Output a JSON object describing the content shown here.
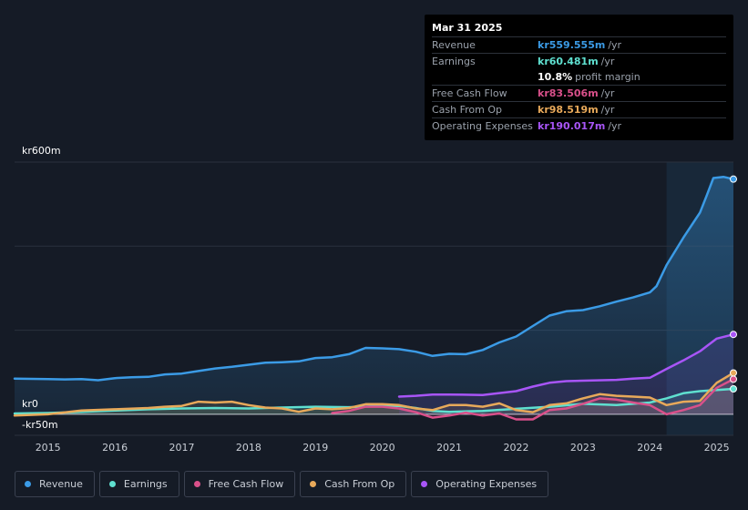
{
  "tooltip": {
    "date": "Mar 31 2025",
    "rows": [
      {
        "label": "Revenue",
        "value": "kr559.555m",
        "unit": "/yr",
        "color": "#3b9be6"
      },
      {
        "label": "Earnings",
        "value": "kr60.481m",
        "unit": "/yr",
        "color": "#5fe0d0"
      },
      {
        "label": "",
        "value": "10.8%",
        "unit": "profit margin",
        "color": "#ffffff"
      },
      {
        "label": "Free Cash Flow",
        "value": "kr83.506m",
        "unit": "/yr",
        "color": "#d9508a"
      },
      {
        "label": "Cash From Op",
        "value": "kr98.519m",
        "unit": "/yr",
        "color": "#e8a95a"
      },
      {
        "label": "Operating Expenses",
        "value": "kr190.017m",
        "unit": "/yr",
        "color": "#a855f7"
      }
    ]
  },
  "legend": [
    {
      "label": "Revenue",
      "color": "#3b9be6"
    },
    {
      "label": "Earnings",
      "color": "#5fe0d0"
    },
    {
      "label": "Free Cash Flow",
      "color": "#d9508a"
    },
    {
      "label": "Cash From Op",
      "color": "#e8a95a"
    },
    {
      "label": "Operating Expenses",
      "color": "#a855f7"
    }
  ],
  "chart_data": {
    "type": "area",
    "title": "",
    "xlabel": "",
    "ylabel": "",
    "y_tick_labels": [
      "kr600m",
      "kr0",
      "-kr50m"
    ],
    "ylim": [
      -50,
      600
    ],
    "xlim": [
      2014.5,
      2025.25
    ],
    "x_ticks": [
      2015,
      2016,
      2017,
      2018,
      2019,
      2020,
      2021,
      2022,
      2023,
      2024,
      2025
    ],
    "forecast_highlight_start": 2024.25,
    "series": [
      {
        "name": "Revenue",
        "color": "#3b9be6",
        "points": [
          [
            2014.5,
            85
          ],
          [
            2015.0,
            84
          ],
          [
            2015.25,
            83
          ],
          [
            2015.5,
            84
          ],
          [
            2015.75,
            81
          ],
          [
            2016.0,
            86
          ],
          [
            2016.25,
            88
          ],
          [
            2016.5,
            89
          ],
          [
            2016.75,
            95
          ],
          [
            2017.0,
            97
          ],
          [
            2017.25,
            103
          ],
          [
            2017.5,
            109
          ],
          [
            2017.75,
            113
          ],
          [
            2018.0,
            118
          ],
          [
            2018.25,
            123
          ],
          [
            2018.5,
            124
          ],
          [
            2018.75,
            126
          ],
          [
            2019.0,
            134
          ],
          [
            2019.25,
            136
          ],
          [
            2019.5,
            143
          ],
          [
            2019.75,
            158
          ],
          [
            2020.0,
            157
          ],
          [
            2020.25,
            155
          ],
          [
            2020.5,
            149
          ],
          [
            2020.75,
            139
          ],
          [
            2021.0,
            144
          ],
          [
            2021.25,
            143
          ],
          [
            2021.5,
            153
          ],
          [
            2021.75,
            171
          ],
          [
            2022.0,
            185
          ],
          [
            2022.25,
            210
          ],
          [
            2022.5,
            235
          ],
          [
            2022.75,
            245
          ],
          [
            2023.0,
            248
          ],
          [
            2023.25,
            257
          ],
          [
            2023.5,
            268
          ],
          [
            2023.75,
            278
          ],
          [
            2024.0,
            290
          ],
          [
            2024.1,
            305
          ],
          [
            2024.25,
            355
          ],
          [
            2024.5,
            420
          ],
          [
            2024.75,
            480
          ],
          [
            2024.85,
            520
          ],
          [
            2024.95,
            562
          ],
          [
            2025.1,
            565
          ],
          [
            2025.25,
            559.555
          ]
        ]
      },
      {
        "name": "Earnings",
        "color": "#5fe0d0",
        "points": [
          [
            2014.5,
            2
          ],
          [
            2015.0,
            3
          ],
          [
            2015.5,
            6
          ],
          [
            2016.0,
            9
          ],
          [
            2016.5,
            12
          ],
          [
            2017.0,
            14
          ],
          [
            2017.5,
            15
          ],
          [
            2018.0,
            14
          ],
          [
            2018.5,
            16
          ],
          [
            2019.0,
            18
          ],
          [
            2019.5,
            17
          ],
          [
            2020.0,
            20
          ],
          [
            2020.25,
            20
          ],
          [
            2020.5,
            15
          ],
          [
            2020.75,
            8
          ],
          [
            2021.0,
            6
          ],
          [
            2021.5,
            8
          ],
          [
            2022.0,
            13
          ],
          [
            2022.5,
            18
          ],
          [
            2023.0,
            25
          ],
          [
            2023.5,
            22
          ],
          [
            2024.0,
            28
          ],
          [
            2024.25,
            38
          ],
          [
            2024.5,
            50
          ],
          [
            2024.75,
            55
          ],
          [
            2025.0,
            58
          ],
          [
            2025.25,
            60.481
          ]
        ]
      },
      {
        "name": "Free Cash Flow",
        "color": "#d9508a",
        "points": [
          [
            2019.25,
            3
          ],
          [
            2019.5,
            8
          ],
          [
            2019.75,
            18
          ],
          [
            2020.0,
            18
          ],
          [
            2020.25,
            14
          ],
          [
            2020.5,
            5
          ],
          [
            2020.75,
            -8
          ],
          [
            2021.0,
            -3
          ],
          [
            2021.25,
            4
          ],
          [
            2021.5,
            -3
          ],
          [
            2021.75,
            2
          ],
          [
            2022.0,
            -12
          ],
          [
            2022.25,
            -12
          ],
          [
            2022.5,
            10
          ],
          [
            2022.75,
            14
          ],
          [
            2023.0,
            25
          ],
          [
            2023.25,
            38
          ],
          [
            2023.5,
            35
          ],
          [
            2023.75,
            28
          ],
          [
            2024.0,
            22
          ],
          [
            2024.25,
            0
          ],
          [
            2024.5,
            10
          ],
          [
            2024.75,
            22
          ],
          [
            2025.0,
            63
          ],
          [
            2025.25,
            83.506
          ]
        ]
      },
      {
        "name": "Cash From Op",
        "color": "#e8a95a",
        "points": [
          [
            2014.5,
            -3
          ],
          [
            2015.0,
            0
          ],
          [
            2015.5,
            9
          ],
          [
            2016.0,
            12
          ],
          [
            2016.5,
            15
          ],
          [
            2016.75,
            18
          ],
          [
            2017.0,
            20
          ],
          [
            2017.25,
            30
          ],
          [
            2017.5,
            28
          ],
          [
            2017.75,
            30
          ],
          [
            2018.0,
            22
          ],
          [
            2018.25,
            16
          ],
          [
            2018.5,
            14
          ],
          [
            2018.75,
            6
          ],
          [
            2019.0,
            14
          ],
          [
            2019.25,
            12
          ],
          [
            2019.5,
            15
          ],
          [
            2019.75,
            24
          ],
          [
            2020.0,
            24
          ],
          [
            2020.25,
            22
          ],
          [
            2020.5,
            14
          ],
          [
            2020.75,
            10
          ],
          [
            2021.0,
            22
          ],
          [
            2021.25,
            22
          ],
          [
            2021.5,
            18
          ],
          [
            2021.75,
            26
          ],
          [
            2022.0,
            10
          ],
          [
            2022.25,
            5
          ],
          [
            2022.5,
            22
          ],
          [
            2022.75,
            26
          ],
          [
            2023.0,
            38
          ],
          [
            2023.25,
            48
          ],
          [
            2023.5,
            44
          ],
          [
            2023.75,
            42
          ],
          [
            2024.0,
            40
          ],
          [
            2024.25,
            22
          ],
          [
            2024.5,
            30
          ],
          [
            2024.75,
            32
          ],
          [
            2025.0,
            75
          ],
          [
            2025.25,
            98.519
          ]
        ]
      },
      {
        "name": "Operating Expenses",
        "color": "#a855f7",
        "points": [
          [
            2020.25,
            42
          ],
          [
            2020.5,
            44
          ],
          [
            2020.75,
            47
          ],
          [
            2021.0,
            47
          ],
          [
            2021.5,
            46
          ],
          [
            2022.0,
            55
          ],
          [
            2022.25,
            66
          ],
          [
            2022.5,
            75
          ],
          [
            2022.75,
            79
          ],
          [
            2023.0,
            80
          ],
          [
            2023.5,
            82
          ],
          [
            2023.75,
            85
          ],
          [
            2024.0,
            87
          ],
          [
            2024.25,
            108
          ],
          [
            2024.5,
            128
          ],
          [
            2024.75,
            150
          ],
          [
            2025.0,
            180
          ],
          [
            2025.25,
            190.017
          ]
        ]
      }
    ]
  }
}
